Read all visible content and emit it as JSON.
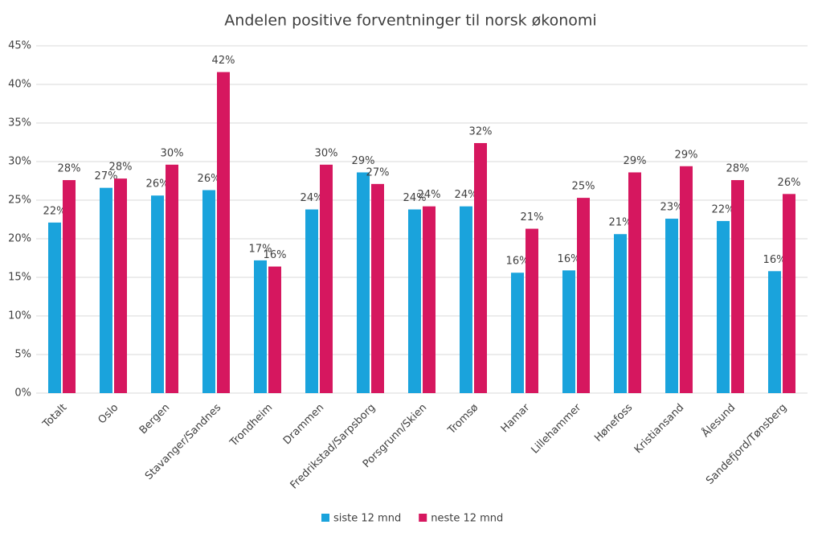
{
  "chart_data": {
    "type": "bar",
    "title": "Andelen positive forventninger til norsk økonomi",
    "categories": [
      "Totalt",
      "Oslo",
      "Bergen",
      "Stavanger/Sandnes",
      "Trondheim",
      "Drammen",
      "Fredrikstad/Sarpsborg",
      "Porsgrunn/Skien",
      "Tromsø",
      "Hamar",
      "Lillehammer",
      "Hønefoss",
      "Kristiansand",
      "Ålesund",
      "Sandefjord/Tønsberg"
    ],
    "series": [
      {
        "name": "siste 12 mnd",
        "color": "#1aa3dc",
        "values": [
          22.1,
          26.6,
          25.6,
          26.3,
          17.2,
          23.8,
          28.6,
          23.8,
          24.2,
          15.6,
          15.9,
          20.6,
          22.6,
          22.3,
          15.8
        ],
        "value_labels": [
          "22%",
          "27%",
          "26%",
          "26%",
          "17%",
          "24%",
          "29%",
          "24%",
          "24%",
          "16%",
          "16%",
          "21%",
          "23%",
          "22%",
          "16%"
        ]
      },
      {
        "name": "neste 12 mnd",
        "color": "#d6175f",
        "values": [
          27.6,
          27.8,
          29.6,
          41.6,
          16.4,
          29.6,
          27.1,
          24.2,
          32.4,
          21.3,
          25.3,
          28.6,
          29.4,
          27.6,
          25.8
        ],
        "value_labels": [
          "28%",
          "28%",
          "30%",
          "42%",
          "16%",
          "30%",
          "27%",
          "24%",
          "32%",
          "21%",
          "25%",
          "29%",
          "29%",
          "28%",
          "26%"
        ]
      }
    ],
    "ylim": [
      0,
      45
    ],
    "yticks": [
      {
        "value": 0,
        "label": "0%"
      },
      {
        "value": 5,
        "label": "5%"
      },
      {
        "value": 10,
        "label": "10%"
      },
      {
        "value": 15,
        "label": "15%"
      },
      {
        "value": 20,
        "label": "20%"
      },
      {
        "value": 25,
        "label": "25%"
      },
      {
        "value": 30,
        "label": "30%"
      },
      {
        "value": 35,
        "label": "35%"
      },
      {
        "value": 40,
        "label": "40%"
      },
      {
        "value": 45,
        "label": "45%"
      }
    ],
    "grid": true,
    "legend": "bottom"
  }
}
